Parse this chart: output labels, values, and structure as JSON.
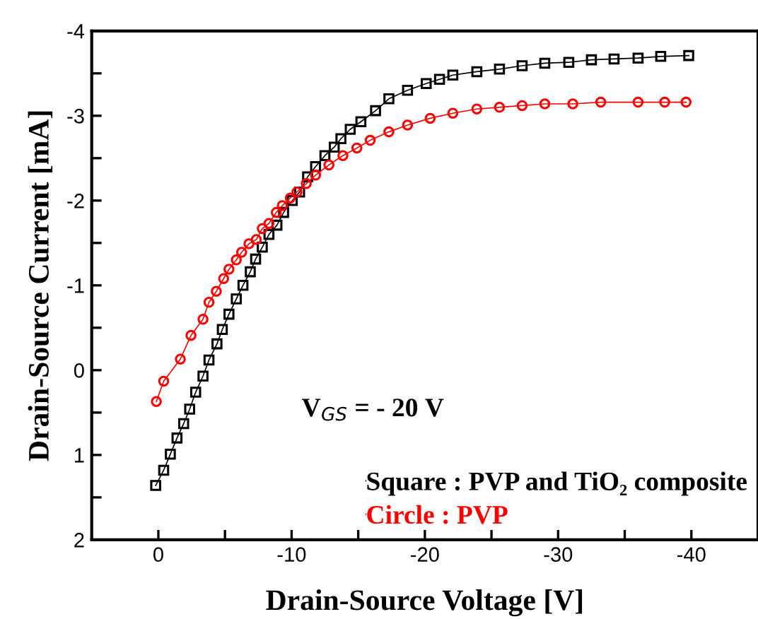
{
  "chart_data": {
    "type": "line",
    "xlabel": "Drain-Source Voltage [V]",
    "ylabel": "Drain-Source Current [mA]",
    "annotations": [
      "V$_{GS}$ = - 20 V"
    ],
    "xlim": [
      5,
      -45
    ],
    "ylim": [
      2,
      -4
    ],
    "xticks": [
      0,
      {
        "value": -5,
        "label": null
      },
      -10,
      {
        "value": -15,
        "label": null
      },
      -20,
      {
        "value": -25,
        "label": null
      },
      -30,
      {
        "value": -35,
        "label": null
      },
      -40
    ],
    "yticks": [
      2,
      {
        "value": 1.5,
        "label": null
      },
      1,
      {
        "value": 0.5,
        "label": null
      },
      0,
      {
        "value": -0.5,
        "label": null
      },
      -1,
      {
        "value": -1.5,
        "label": null
      },
      -2,
      {
        "value": -2.5,
        "label": null
      },
      -3,
      {
        "value": -3.5,
        "label": null
      },
      -4
    ],
    "grid": false,
    "legend": "bottom right",
    "line_style": "solid",
    "series": [
      {
        "name": "Square : PVP and TiO₂ composite",
        "color": "#000000",
        "marker": "square",
        "x": [
          0.2,
          -0.4,
          -0.9,
          -1.4,
          -1.9,
          -2.35,
          -2.8,
          -3.35,
          -3.8,
          -4.4,
          -4.8,
          -5.3,
          -5.85,
          -6.35,
          -6.9,
          -7.3,
          -7.8,
          -8.3,
          -8.9,
          -9.4,
          -10.05,
          -10.6,
          -11.2,
          -11.8,
          -12.5,
          -13.2,
          -13.7,
          -14.4,
          -15.2,
          -16.3,
          -17.3,
          -18.7,
          -20.1,
          -21.1,
          -22.1,
          -23.9,
          -25.6,
          -27.3,
          -29.0,
          -30.8,
          -32.5,
          -34.2,
          -36,
          -37.7,
          -39.8
        ],
        "values": [
          1.36,
          1.18,
          0.99,
          0.8,
          0.63,
          0.46,
          0.26,
          0.07,
          -0.12,
          -0.31,
          -0.48,
          -0.66,
          -0.84,
          -1.0,
          -1.16,
          -1.31,
          -1.45,
          -1.6,
          -1.71,
          -1.86,
          -2.0,
          -2.1,
          -2.28,
          -2.4,
          -2.53,
          -2.63,
          -2.73,
          -2.84,
          -2.93,
          -3.06,
          -3.2,
          -3.3,
          -3.38,
          -3.43,
          -3.48,
          -3.52,
          -3.55,
          -3.59,
          -3.62,
          -3.63,
          -3.66,
          -3.67,
          -3.68,
          -3.7,
          -3.71
        ]
      },
      {
        "name": "Circle : PVP",
        "color": "#ff0000",
        "marker": "circle",
        "x": [
          0.15,
          -0.4,
          -1.65,
          -2.45,
          -3.35,
          -3.8,
          -4.35,
          -4.9,
          -5.3,
          -5.85,
          -6.25,
          -6.8,
          -7.35,
          -7.8,
          -8.3,
          -8.85,
          -9.3,
          -9.9,
          -10.4,
          -11.1,
          -11.8,
          -12.8,
          -13.85,
          -14.9,
          -15.9,
          -17.3,
          -18.7,
          -20.4,
          -22.1,
          -23.9,
          -25.6,
          -27.3,
          -29.0,
          -31.1,
          -33.2,
          -36,
          -38,
          -39.6
        ],
        "values": [
          0.37,
          0.13,
          -0.13,
          -0.41,
          -0.6,
          -0.8,
          -0.93,
          -1.08,
          -1.19,
          -1.3,
          -1.39,
          -1.49,
          -1.54,
          -1.67,
          -1.73,
          -1.86,
          -1.94,
          -2.03,
          -2.1,
          -2.2,
          -2.3,
          -2.42,
          -2.53,
          -2.62,
          -2.71,
          -2.81,
          -2.89,
          -2.97,
          -3.03,
          -3.08,
          -3.1,
          -3.12,
          -3.14,
          -3.14,
          -3.16,
          -3.16,
          -3.16,
          -3.16
        ]
      }
    ]
  }
}
